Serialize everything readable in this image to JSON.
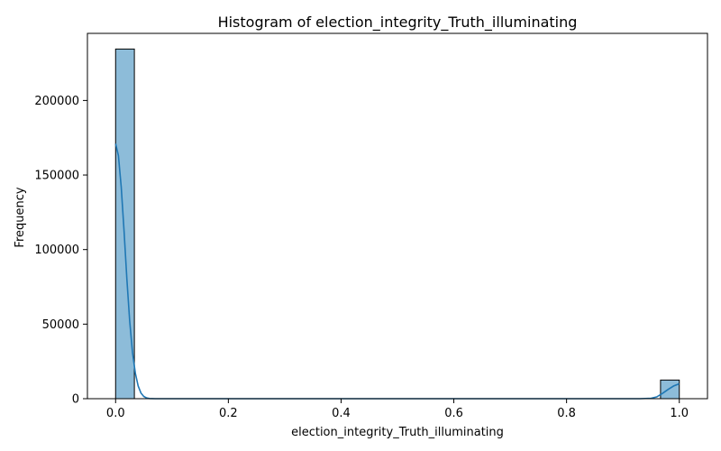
{
  "chart_data": {
    "type": "bar",
    "title": "Histogram of election_integrity_Truth_illuminating",
    "xlabel": "election_integrity_Truth_illuminating",
    "ylabel": "Frequency",
    "xlim": [
      -0.05,
      1.05
    ],
    "ylim": [
      0,
      245000
    ],
    "x_ticks": [
      0.0,
      0.2,
      0.4,
      0.6,
      0.8,
      1.0
    ],
    "x_tick_labels": [
      "0.0",
      "0.2",
      "0.4",
      "0.6",
      "0.8",
      "1.0"
    ],
    "y_ticks": [
      0,
      50000,
      100000,
      150000,
      200000
    ],
    "y_tick_labels": [
      "0",
      "50000",
      "100000",
      "150000",
      "200000"
    ],
    "bins": [
      {
        "x0": 0.0,
        "x1": 0.0333,
        "value": 234500
      },
      {
        "x0": 0.9667,
        "x1": 1.0,
        "value": 12500
      }
    ],
    "kde": [
      [
        0.0,
        171000
      ],
      [
        0.005,
        163000
      ],
      [
        0.01,
        142000
      ],
      [
        0.015,
        112000
      ],
      [
        0.02,
        80000
      ],
      [
        0.025,
        52000
      ],
      [
        0.03,
        31000
      ],
      [
        0.035,
        17000
      ],
      [
        0.04,
        8500
      ],
      [
        0.045,
        3800
      ],
      [
        0.05,
        1500
      ],
      [
        0.055,
        500
      ],
      [
        0.06,
        150
      ],
      [
        0.07,
        0
      ],
      [
        0.93,
        0
      ],
      [
        0.95,
        300
      ],
      [
        0.96,
        1200
      ],
      [
        0.97,
        3500
      ],
      [
        0.98,
        6200
      ],
      [
        0.99,
        8500
      ],
      [
        1.0,
        10000
      ]
    ],
    "grid": false,
    "colors": {
      "bar_fill": "#8dbcd9",
      "bar_edge": "#000000",
      "kde_line": "#1f77b4"
    }
  }
}
